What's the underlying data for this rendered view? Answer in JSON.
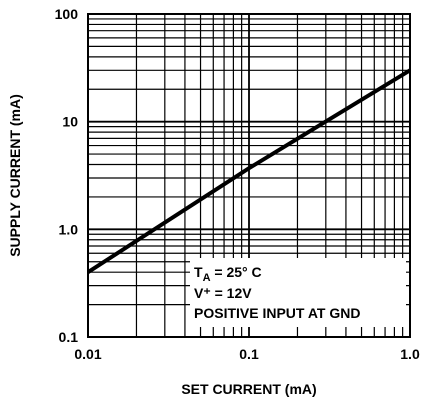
{
  "chart_data": {
    "type": "line",
    "title": "",
    "xlabel": "SET CURRENT (mA)",
    "ylabel": "SUPPLY CURRENT (mA)",
    "x_scale": "log",
    "y_scale": "log",
    "xlim": [
      0.01,
      1.0
    ],
    "ylim": [
      0.1,
      100
    ],
    "x_ticks": [
      "0.01",
      "0.1",
      "1.0"
    ],
    "y_ticks": [
      "0.1",
      "1.0",
      "10",
      "100"
    ],
    "grid": true,
    "legend": "none",
    "series": [
      {
        "x": [
          0.01,
          0.1,
          1.0
        ],
        "y": [
          0.4,
          3.7,
          30
        ]
      }
    ],
    "annotation": {
      "line1_main": "T",
      "line1_sub": "A",
      "line1_rest": " = 25° C",
      "line2": "V⁺ = 12V",
      "line3": "POSITIVE INPUT AT GND"
    },
    "line_color": "#000000"
  }
}
